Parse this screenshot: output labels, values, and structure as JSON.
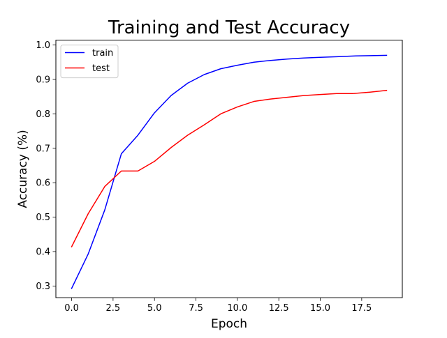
{
  "chart_data": {
    "type": "line",
    "title": "Training and Test Accuracy",
    "xlabel": "Epoch",
    "ylabel": "Accuracy (%)",
    "xlim": [
      -0.95,
      19.95
    ],
    "ylim": [
      0.266,
      1.014
    ],
    "xticks": [
      0.0,
      2.5,
      5.0,
      7.5,
      10.0,
      12.5,
      15.0,
      17.5
    ],
    "xtick_labels": [
      "0.0",
      "2.5",
      "5.0",
      "7.5",
      "10.0",
      "12.5",
      "15.0",
      "17.5"
    ],
    "yticks": [
      0.3,
      0.4,
      0.5,
      0.6,
      0.7,
      0.8,
      0.9,
      1.0
    ],
    "ytick_labels": [
      "0.3",
      "0.4",
      "0.5",
      "0.6",
      "0.7",
      "0.8",
      "0.9",
      "1.0"
    ],
    "grid": false,
    "legend_position": "top-left",
    "x": [
      0,
      1,
      2,
      3,
      4,
      5,
      6,
      7,
      8,
      9,
      10,
      11,
      12,
      13,
      14,
      15,
      16,
      17,
      18,
      19
    ],
    "series": [
      {
        "name": "train",
        "color": "#0000ff",
        "values": [
          0.293,
          0.393,
          0.521,
          0.684,
          0.738,
          0.803,
          0.853,
          0.889,
          0.914,
          0.931,
          0.941,
          0.95,
          0.955,
          0.959,
          0.962,
          0.964,
          0.966,
          0.968,
          0.969,
          0.97
        ]
      },
      {
        "name": "test",
        "color": "#ff0000",
        "values": [
          0.414,
          0.51,
          0.589,
          0.634,
          0.634,
          0.662,
          0.702,
          0.738,
          0.768,
          0.8,
          0.82,
          0.836,
          0.843,
          0.848,
          0.853,
          0.856,
          0.859,
          0.859,
          0.863,
          0.868
        ]
      }
    ]
  }
}
